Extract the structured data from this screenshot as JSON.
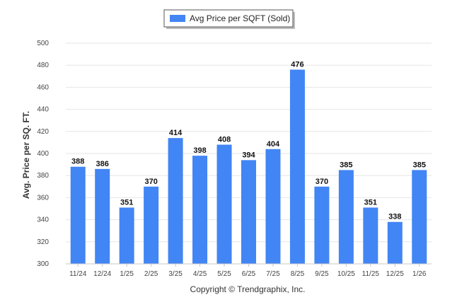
{
  "chart_data": {
    "type": "bar",
    "title": "",
    "categories": [
      "11/24",
      "12/24",
      "1/25",
      "2/25",
      "3/25",
      "4/25",
      "5/25",
      "6/25",
      "7/25",
      "8/25",
      "9/25",
      "10/25",
      "11/25",
      "12/25",
      "1/26"
    ],
    "series": [
      {
        "name": "Avg Price per SQFT (Sold)",
        "values": [
          388,
          386,
          351,
          370,
          414,
          398,
          408,
          394,
          404,
          476,
          370,
          385,
          351,
          338,
          385
        ],
        "color": "#4285f4"
      }
    ],
    "xlabel": "",
    "ylabel": "Avg. Price per SQ. FT.",
    "ylim": [
      300,
      500
    ],
    "yticks": [
      300,
      320,
      340,
      360,
      380,
      400,
      420,
      440,
      460,
      480,
      500
    ],
    "grid": true,
    "legend_position": "top-center",
    "footer": "Copyright © Trendgraphix, Inc."
  }
}
